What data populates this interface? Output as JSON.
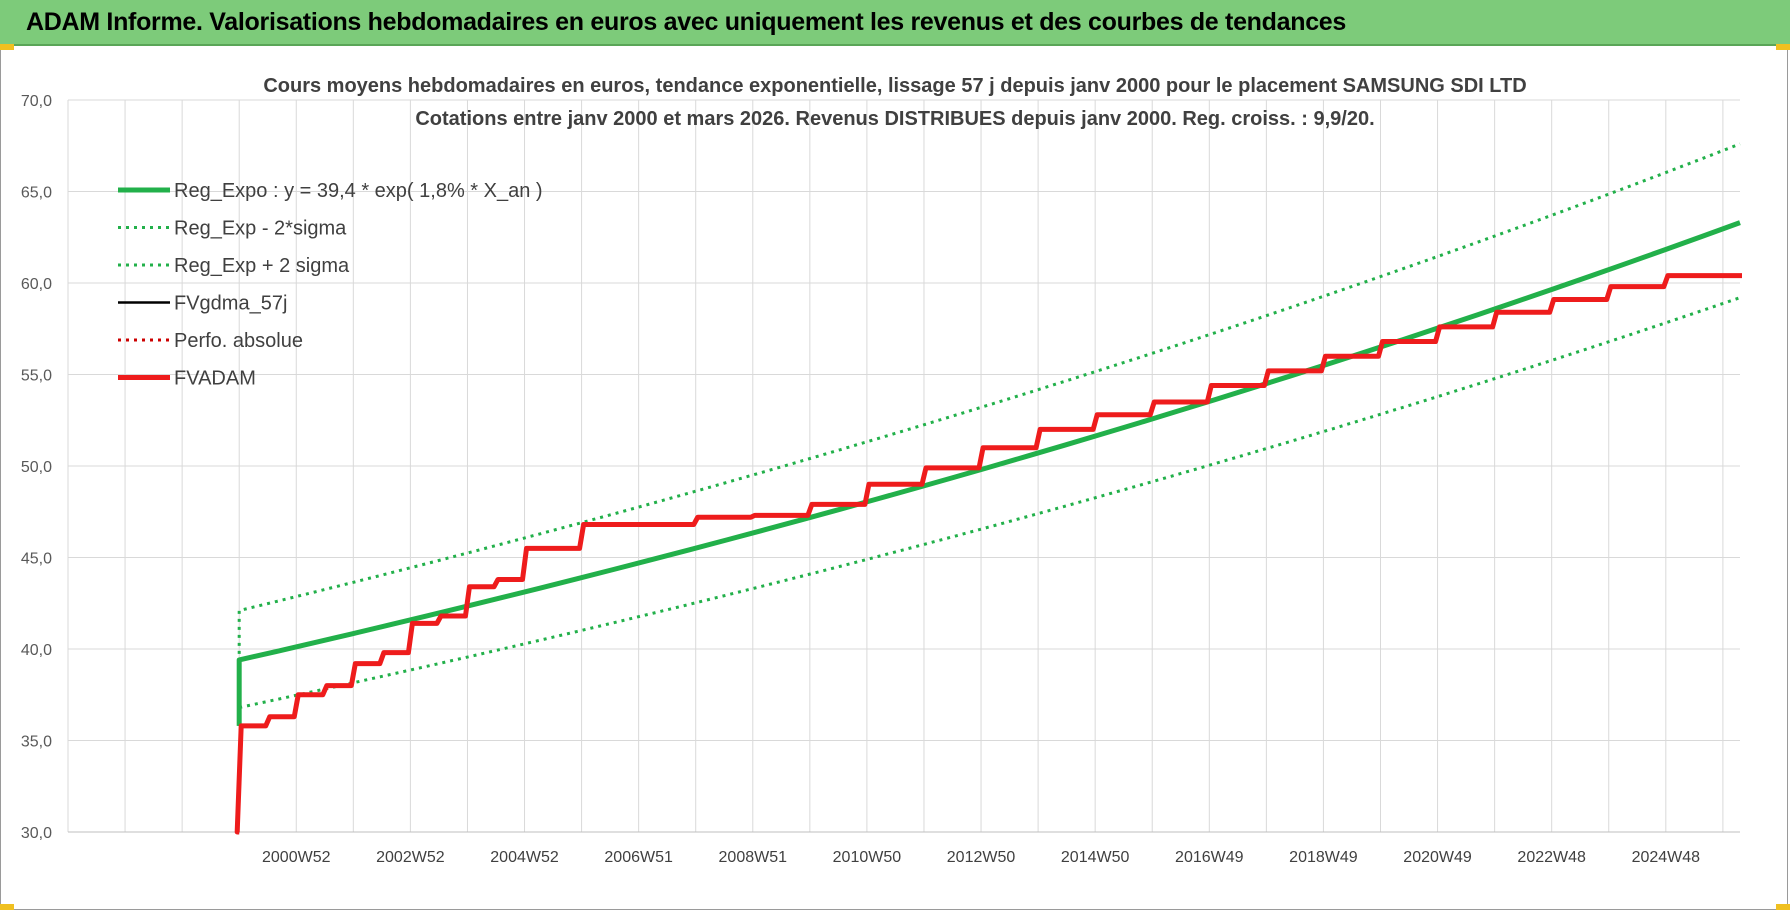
{
  "banner": {
    "title": "ADAM Informe. Valorisations hebdomadaires en euros avec uniquement les revenus et des courbes de tendances"
  },
  "colors": {
    "banner": "#7dcb7a",
    "reg_expo": "#22b04a",
    "fv_adam": "#ee1c1c",
    "fvgdma": "#000000",
    "perfo": "#cc0000",
    "grid": "#d9d9d9"
  },
  "chart_data": {
    "type": "line",
    "title": "Cours moyens hebdomadaires en euros, tendance exponentielle, lissage 57 j depuis janv 2000  pour le placement SAMSUNG SDI LTD",
    "subtitle": "Cotations entre janv 2000 et mars 2026. Revenus DISTRIBUES depuis janv 2000.  Reg. croiss. : 9,9/20.",
    "ylim": [
      30,
      70
    ],
    "y_ticks": [
      "30,0",
      "35,0",
      "40,0",
      "45,0",
      "50,0",
      "55,0",
      "60,0",
      "65,0",
      "70,0"
    ],
    "x_ticks": [
      "2000W52",
      "2002W52",
      "2004W52",
      "2006W51",
      "2008W51",
      "2010W50",
      "2012W50",
      "2014W50",
      "2016W49",
      "2018W49",
      "2020W49",
      "2022W48",
      "2024W48"
    ],
    "x_range": [
      1997.0,
      2026.3
    ],
    "grid": true,
    "legend_position": "top-left",
    "legend": [
      {
        "label": "Reg_Expo : y = 39,4 * exp( 1,8% *  X_an )",
        "color": "#22b04a",
        "style": "solid-thick"
      },
      {
        "label": "Reg_Exp - 2*sigma",
        "color": "#22b04a",
        "style": "dotted"
      },
      {
        "label": "Reg_Exp + 2 sigma",
        "color": "#22b04a",
        "style": "dotted"
      },
      {
        "label": "FVgdma_57j",
        "color": "#000000",
        "style": "solid"
      },
      {
        "label": "Perfo. absolue",
        "color": "#cc0000",
        "style": "dotted"
      },
      {
        "label": "FVADAM",
        "color": "#ee1c1c",
        "style": "solid-thick"
      }
    ],
    "series": [
      {
        "name": "Reg_Expo : y = 39,4 * exp( 1,8% *  X_an )",
        "x": [
          2000.0,
          2000.0,
          2026.3
        ],
        "values": [
          35.8,
          39.4,
          63.3
        ]
      },
      {
        "name": "Reg_Exp - 2*sigma",
        "x": [
          2000.0,
          2026.3
        ],
        "values": [
          36.8,
          59.2
        ]
      },
      {
        "name": "Reg_Exp + 2 sigma",
        "x": [
          2000.0,
          2000.0,
          2026.3
        ],
        "values": [
          35.8,
          42.1,
          67.6
        ]
      },
      {
        "name": "FVgdma_57j",
        "x": [
          2000.0,
          2000.0,
          2000.5,
          2001.0,
          2001.5,
          2002.0,
          2002.5,
          2003.0,
          2003.5,
          2004.0,
          2004.5,
          2005.0,
          2006.0,
          2008.0,
          2009.0,
          2010.0,
          2011.0,
          2012.0,
          2013.0,
          2014.0,
          2015.0,
          2016.0,
          2017.0,
          2018.0,
          2019.0,
          2020.0,
          2021.0,
          2022.0,
          2023.0,
          2024.0,
          2025.0,
          2026.3
        ],
        "values": [
          30.0,
          35.8,
          36.3,
          37.5,
          38.0,
          39.2,
          39.8,
          41.4,
          41.8,
          43.4,
          43.8,
          45.5,
          46.8,
          47.2,
          47.3,
          47.9,
          49.0,
          49.9,
          51.0,
          52.0,
          52.8,
          53.5,
          54.4,
          55.2,
          56.0,
          56.8,
          57.6,
          58.4,
          59.1,
          59.8,
          60.4,
          60.4
        ]
      },
      {
        "name": "Perfo. absolue",
        "x": [
          2000.0,
          2026.3
        ],
        "values": [
          35.8,
          60.4
        ]
      },
      {
        "name": "FVADAM",
        "x": [
          2000.0,
          2000.0,
          2000.5,
          2001.0,
          2001.5,
          2002.0,
          2002.5,
          2003.0,
          2003.5,
          2004.0,
          2004.5,
          2005.0,
          2006.0,
          2008.0,
          2009.0,
          2010.0,
          2011.0,
          2012.0,
          2013.0,
          2014.0,
          2015.0,
          2016.0,
          2017.0,
          2018.0,
          2019.0,
          2020.0,
          2021.0,
          2022.0,
          2023.0,
          2024.0,
          2025.0,
          2026.3
        ],
        "values": [
          30.0,
          35.8,
          36.3,
          37.5,
          38.0,
          39.2,
          39.8,
          41.4,
          41.8,
          43.4,
          43.8,
          45.5,
          46.8,
          47.2,
          47.3,
          47.9,
          49.0,
          49.9,
          51.0,
          52.0,
          52.8,
          53.5,
          54.4,
          55.2,
          56.0,
          56.8,
          57.6,
          58.4,
          59.1,
          59.8,
          60.4,
          60.4
        ]
      }
    ]
  }
}
